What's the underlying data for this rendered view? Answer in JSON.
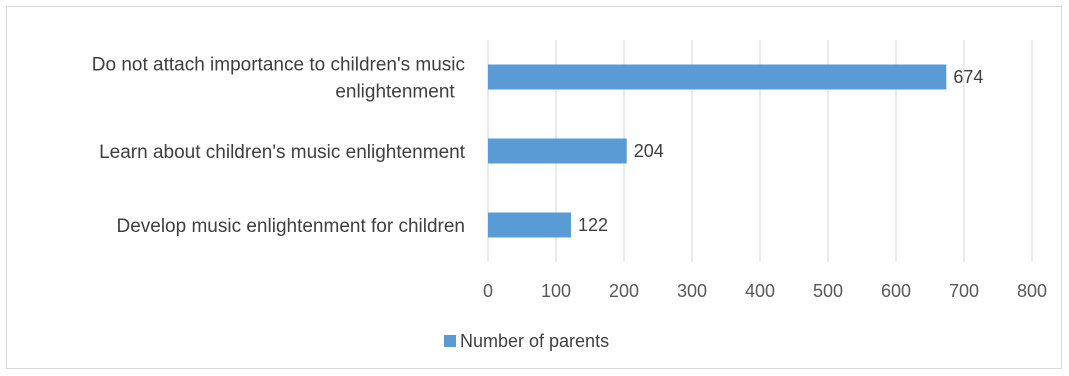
{
  "chart_data": {
    "type": "bar",
    "orientation": "horizontal",
    "categories": [
      "Do not attach importance to children's music enlightenment",
      "Learn about children's music enlightenment",
      "Develop music enlightenment for children"
    ],
    "category_lines": [
      [
        "Do not attach importance to children's music",
        "enlightenment"
      ],
      [
        "Learn about children's music enlightenment"
      ],
      [
        "Develop music enlightenment for children"
      ]
    ],
    "series": [
      {
        "name": "Number of parents",
        "values": [
          674,
          204,
          122
        ],
        "color": "#5b9bd5"
      }
    ],
    "xlim": [
      0,
      800
    ],
    "xticks": [
      "0",
      "100",
      "200",
      "300",
      "400",
      "500",
      "600",
      "700",
      "800"
    ],
    "grid": true,
    "gridline_color": "#d9d9d9",
    "legend_position": "bottom",
    "data_labels": true
  }
}
